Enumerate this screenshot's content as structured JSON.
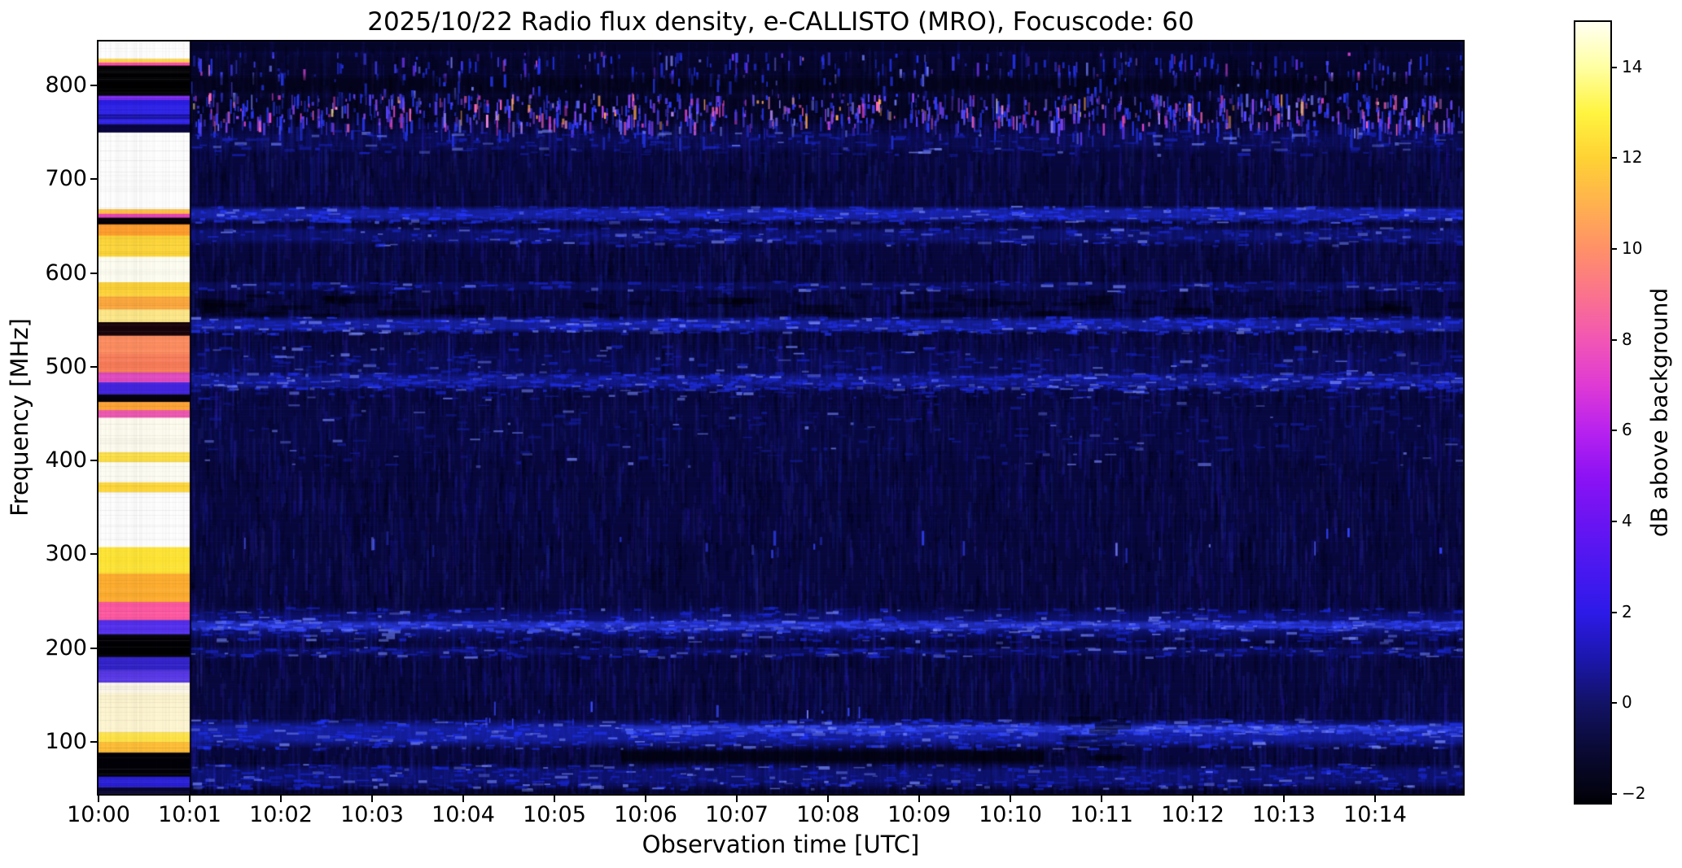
{
  "title": "2025/10/22  Radio flux density, e-CALLISTO (MRO), Focuscode: 60",
  "chart_data": {
    "type": "heatmap",
    "title": "2025/10/22  Radio flux density, e-CALLISTO (MRO), Focuscode: 60",
    "xlabel": "Observation time [UTC]",
    "ylabel": "Frequency [MHz]",
    "colorbar_label": "dB above background",
    "x_tick_labels": [
      "10:00",
      "10:01",
      "10:02",
      "10:03",
      "10:04",
      "10:05",
      "10:06",
      "10:07",
      "10:08",
      "10:09",
      "10:10",
      "10:11",
      "10:12",
      "10:13",
      "10:14"
    ],
    "x_range": [
      "10:00:00",
      "10:14:58"
    ],
    "y_tick_values": [
      800,
      700,
      600,
      500,
      400,
      300,
      200,
      100
    ],
    "y_range_mhz": [
      44.5,
      847
    ],
    "colorbar_ticks": [
      {
        "v": 14,
        "label": "14"
      },
      {
        "v": 12,
        "label": "12"
      },
      {
        "v": 10,
        "label": "10"
      },
      {
        "v": 8,
        "label": "8"
      },
      {
        "v": 6,
        "label": "6"
      },
      {
        "v": 4,
        "label": "4"
      },
      {
        "v": 2,
        "label": "2"
      },
      {
        "v": 0,
        "label": "0"
      },
      {
        "v": -2,
        "label": "−2"
      }
    ],
    "color_scale_range_db": [
      -2.2,
      15.0
    ],
    "colormap": "gnuplot2-like: black → blue → violet → magenta → orange → yellow → white",
    "colormap_stops": [
      {
        "v": 15.0,
        "c": "#fffff2"
      },
      {
        "v": 14,
        "c": "#ffffa2"
      },
      {
        "v": 13,
        "c": "#fff440"
      },
      {
        "v": 12,
        "c": "#ffd234"
      },
      {
        "v": 11,
        "c": "#ffb14e"
      },
      {
        "v": 10,
        "c": "#ff9068"
      },
      {
        "v": 9,
        "c": "#fa738c"
      },
      {
        "v": 8,
        "c": "#f256b4"
      },
      {
        "v": 7,
        "c": "#df3ad4"
      },
      {
        "v": 6,
        "c": "#b822ee"
      },
      {
        "v": 5,
        "c": "#8d12f4"
      },
      {
        "v": 4,
        "c": "#6a14f2"
      },
      {
        "v": 3,
        "c": "#4a18f0"
      },
      {
        "v": 2,
        "c": "#2d1ae8"
      },
      {
        "v": 1,
        "c": "#1c17ae"
      },
      {
        "v": 0,
        "c": "#121266"
      },
      {
        "v": -1,
        "c": "#0a0a36"
      },
      {
        "v": -2,
        "c": "#030310"
      },
      {
        "v": -2.2,
        "c": "#000006"
      }
    ],
    "background_color": "#08083c",
    "description": "Dynamic radio spectrogram. A bright banded calibration/focus strip fills 10:00–10:01; afterwards the spectrum is quiet dark-blue background with narrowband RFI: a speckled interference band near 745–835 MHz, persistent lines near 660, 640, 545 and 480 MHz, an emission band near 210–240 MHz, and strong FM/low-band signal near 50–125 MHz with a dark notch 77–92 MHz between ≈10:05.7 and ≈10:10.3.",
    "calibration_strip": {
      "time_span": "10:00–10:01",
      "bands_pct_color": [
        [
          0,
          2.3,
          "#ffffff"
        ],
        [
          2.3,
          2.8,
          "#ffd84a"
        ],
        [
          2.8,
          3.2,
          "#ff4fb0"
        ],
        [
          3.2,
          7.2,
          "#010103"
        ],
        [
          7.2,
          7.8,
          "#7a2cf0"
        ],
        [
          7.8,
          9.7,
          "#2a1fe6"
        ],
        [
          9.7,
          10.3,
          "#1b14a8"
        ],
        [
          10.3,
          11.0,
          "#2f22e8"
        ],
        [
          11.0,
          12.1,
          "#0a0640"
        ],
        [
          12.1,
          22.3,
          "#ffffff"
        ],
        [
          22.3,
          22.9,
          "#ffc040"
        ],
        [
          22.9,
          23.4,
          "#f046c0"
        ],
        [
          23.4,
          24.3,
          "#050208"
        ],
        [
          24.3,
          25.8,
          "#ff9e2e"
        ],
        [
          25.8,
          28.6,
          "#ffd83c"
        ],
        [
          28.6,
          32.0,
          "#fffef2"
        ],
        [
          32.0,
          33.9,
          "#ffd43a"
        ],
        [
          33.9,
          35.6,
          "#ffab40"
        ],
        [
          35.6,
          37.3,
          "#ffe98a"
        ],
        [
          37.3,
          39.1,
          "#18040a"
        ],
        [
          39.1,
          41.5,
          "#ff8e62"
        ],
        [
          41.5,
          44.0,
          "#fa7d5a"
        ],
        [
          44.0,
          45.3,
          "#e24cc2"
        ],
        [
          45.3,
          46.9,
          "#4526e2"
        ],
        [
          46.9,
          47.9,
          "#060310"
        ],
        [
          47.9,
          49.0,
          "#ffa435"
        ],
        [
          49.0,
          50.0,
          "#f05ab4"
        ],
        [
          50.0,
          54.6,
          "#fffdf0"
        ],
        [
          54.6,
          55.9,
          "#ffe24a"
        ],
        [
          55.9,
          58.6,
          "#fffef4"
        ],
        [
          58.6,
          59.9,
          "#ffd83a"
        ],
        [
          59.9,
          67.2,
          "#ffffff"
        ],
        [
          67.2,
          70.7,
          "#ffe534"
        ],
        [
          70.7,
          74.5,
          "#ffaf30"
        ],
        [
          74.5,
          76.9,
          "#ff5aa2"
        ],
        [
          76.9,
          78.8,
          "#5430ee"
        ],
        [
          78.8,
          81.8,
          "#020105"
        ],
        [
          81.8,
          83.6,
          "#3424cc"
        ],
        [
          83.6,
          85.2,
          "#5a3ae8"
        ],
        [
          85.2,
          86.6,
          "#fef8ea"
        ],
        [
          86.6,
          91.8,
          "#fff6d2"
        ],
        [
          91.8,
          93.1,
          "#ffe448"
        ],
        [
          93.1,
          94.5,
          "#ffbe36"
        ],
        [
          94.5,
          97.7,
          "#030208"
        ],
        [
          97.7,
          99.1,
          "#2a20d8"
        ],
        [
          99.1,
          100,
          "#0a0834"
        ]
      ]
    },
    "features": [
      {
        "kind": "dark",
        "f0": 847,
        "f1": 835,
        "alpha": 0.35
      },
      {
        "kind": "dark",
        "f0": 836,
        "f1": 807,
        "alpha": 0.3
      },
      {
        "kind": "speckle",
        "f0": 836,
        "f1": 810,
        "density": 0.3,
        "palette": [
          "#2233ee",
          "#4444ff",
          "#6a33ee",
          "#cc44cc"
        ]
      },
      {
        "kind": "dark",
        "f0": 813,
        "f1": 789,
        "alpha": 0.55
      },
      {
        "kind": "speckle",
        "f0": 813,
        "f1": 790,
        "density": 0.1,
        "palette": [
          "#2233dd",
          "#4433cc"
        ]
      },
      {
        "kind": "dark",
        "f0": 794,
        "f1": 756,
        "alpha": 0.45
      },
      {
        "kind": "speckle",
        "f0": 792,
        "f1": 759,
        "density": 0.9,
        "palette": [
          "#2a3cff",
          "#5544ff",
          "#8844ee",
          "#dd44cc",
          "#ff66bb",
          "#ffaa55",
          "#ffe27a"
        ]
      },
      {
        "kind": "speckle",
        "f0": 760,
        "f1": 744,
        "density": 0.18,
        "palette": [
          "#2233dd",
          "#5533dd"
        ]
      },
      {
        "kind": "band",
        "f0": 753,
        "f1": 727,
        "color": "#1a26cc",
        "alpha": 0.14,
        "dash": 0.5
      },
      {
        "kind": "band",
        "f0": 672,
        "f1": 654,
        "color": "#2438ff",
        "alpha": 0.5,
        "dash": 1.0
      },
      {
        "kind": "band",
        "f0": 650,
        "f1": 630,
        "color": "#1c2ce0",
        "alpha": 0.28,
        "dash": 0.6
      },
      {
        "kind": "band",
        "f0": 592,
        "f1": 580,
        "color": "#1a28d0",
        "alpha": 0.2,
        "dash": 0.35
      },
      {
        "kind": "darkpatch",
        "f0": 578,
        "f1": 556,
        "alpha": 0.5,
        "n": 70
      },
      {
        "kind": "band",
        "f0": 554,
        "f1": 536,
        "color": "#2438ff",
        "alpha": 0.45,
        "dash": 1.0
      },
      {
        "kind": "band",
        "f0": 523,
        "f1": 467,
        "color": "#1826cc",
        "alpha": 0.14,
        "dash": 0.9
      },
      {
        "kind": "band",
        "f0": 494,
        "f1": 476,
        "color": "#2030e8",
        "alpha": 0.32,
        "dash": 1.1
      },
      {
        "kind": "band",
        "f0": 470,
        "f1": 395,
        "color": "#141ea0",
        "alpha": 0.07,
        "dash": 0.5
      },
      {
        "kind": "speckle",
        "f0": 332,
        "f1": 303,
        "density": 0.025,
        "palette": [
          "#3344ff",
          "#5566ff"
        ]
      },
      {
        "kind": "band",
        "f0": 244,
        "f1": 207,
        "color": "#1b2ae0",
        "alpha": 0.3,
        "dash": 1.0
      },
      {
        "kind": "band",
        "f0": 230,
        "f1": 219,
        "color": "#3448ff",
        "alpha": 0.45,
        "dash": 1.0
      },
      {
        "kind": "band",
        "f0": 202,
        "f1": 191,
        "color": "#1a28d0",
        "alpha": 0.2,
        "dash": 0.5
      },
      {
        "kind": "speckle",
        "f0": 146,
        "f1": 117,
        "density": 0.035,
        "palette": [
          "#3a4cff",
          "#2a3cee"
        ],
        "x0": 0.25,
        "x1": 0.63
      },
      {
        "kind": "band",
        "f0": 125,
        "f1": 93,
        "color": "#2034f8",
        "alpha": 0.5,
        "dash": 1.2
      },
      {
        "kind": "band",
        "f0": 119,
        "f1": 109,
        "color": "#3a50ff",
        "alpha": 0.32,
        "dash": 1.0,
        "x0": 0.383,
        "x1": 1.0
      },
      {
        "kind": "dark",
        "f0": 93,
        "f1": 76,
        "alpha": 0.7,
        "x0": 0.383,
        "x1": 0.693
      },
      {
        "kind": "darkpatch",
        "f0": 142,
        "f1": 84,
        "alpha": 0.5,
        "n": 12,
        "x0": 0.685,
        "x1": 0.74
      },
      {
        "kind": "band",
        "f0": 77,
        "f1": 50,
        "color": "#1a2ae0",
        "alpha": 0.3,
        "dash": 1.0
      },
      {
        "kind": "dark",
        "f0": 50,
        "f1": 44.5,
        "alpha": 0.35
      }
    ]
  }
}
